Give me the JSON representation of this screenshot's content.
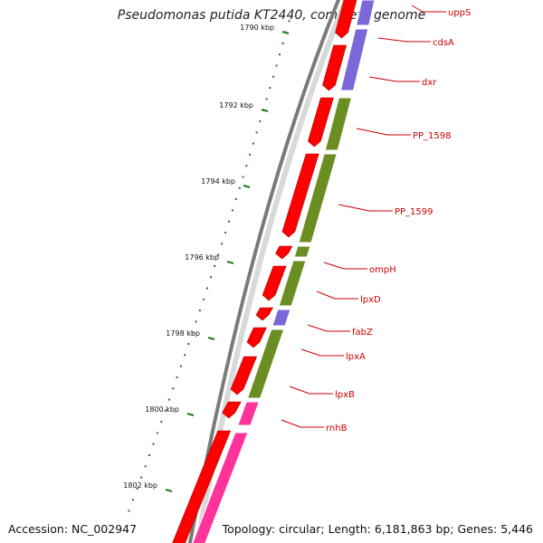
{
  "title": "Pseudomonas putida KT2440, complete genome",
  "accession": "Accession: NC_002947",
  "topology": "Topology: circular; Length: 6,181,863 bp; Genes: 5,446",
  "tick_labels": [
    "1790 kbp",
    "1792 kbp",
    "1794 kbp",
    "1796 kbp",
    "1798 kbp",
    "1800 kbp",
    "1802 kbp"
  ],
  "genes": [
    {
      "name": "uppS",
      "track": "inner",
      "color": "#7b68d8"
    },
    {
      "name": "cdsA",
      "track": "inner",
      "color": "#7b68d8"
    },
    {
      "name": "dxr",
      "track": "inner",
      "color": "#7b68d8"
    },
    {
      "name": "PP_1598",
      "track": "inner",
      "color": "#6b8e23"
    },
    {
      "name": "PP_1599",
      "track": "inner",
      "color": "#6b8e23"
    },
    {
      "name": "ompH",
      "track": "inner",
      "color": "#6b8e23"
    },
    {
      "name": "lpxD",
      "track": "inner",
      "color": "#6b8e23"
    },
    {
      "name": "fabZ",
      "track": "inner",
      "color": "#7b68d8"
    },
    {
      "name": "lpxA",
      "track": "inner",
      "color": "#6b8e23"
    },
    {
      "name": "lpxB",
      "track": "inner",
      "color": "#6b8e23"
    },
    {
      "name": "rnhB",
      "track": "inner",
      "color": "#ff3399"
    }
  ],
  "colors": {
    "cds": "#ff0000",
    "backbone": "#8a8a8a",
    "ticks": "#1e7a1e",
    "labels": "#cc0000"
  }
}
